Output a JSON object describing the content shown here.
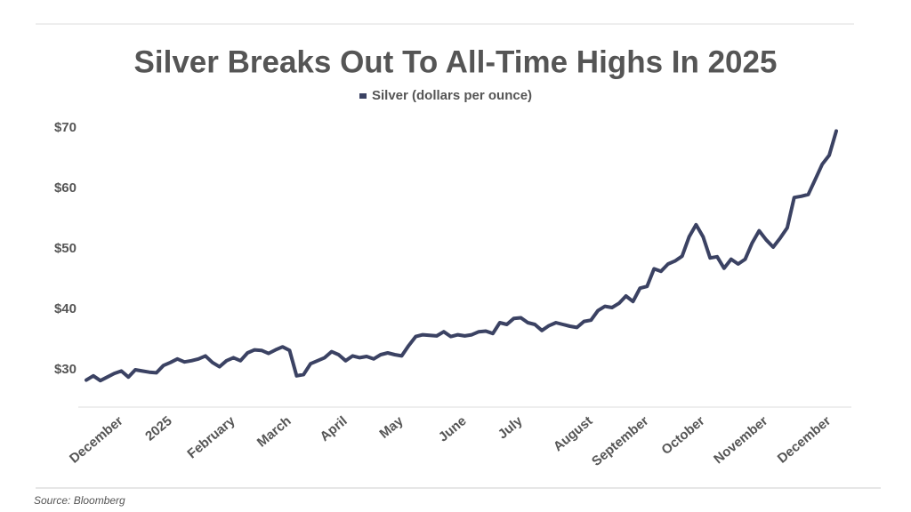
{
  "chart_data": {
    "type": "line",
    "title": "Silver Breaks Out To All-Time Highs In 2025",
    "source": "Source: Bloomberg",
    "categories": [
      null,
      null,
      null,
      null,
      null,
      "December",
      null,
      null,
      null,
      null,
      null,
      null,
      "2025",
      null,
      null,
      null,
      null,
      null,
      null,
      null,
      null,
      "February",
      null,
      null,
      null,
      null,
      null,
      null,
      null,
      "March",
      null,
      null,
      null,
      null,
      null,
      null,
      null,
      "April",
      null,
      null,
      null,
      null,
      null,
      null,
      null,
      "May",
      null,
      null,
      null,
      null,
      null,
      null,
      null,
      null,
      "June",
      null,
      null,
      null,
      null,
      null,
      null,
      null,
      "July",
      null,
      null,
      null,
      null,
      null,
      null,
      null,
      null,
      null,
      "August",
      null,
      null,
      null,
      null,
      null,
      null,
      null,
      "September",
      null,
      null,
      null,
      null,
      null,
      null,
      null,
      "October",
      null,
      null,
      null,
      null,
      null,
      null,
      null,
      null,
      "November",
      null,
      null,
      null,
      null,
      null,
      null,
      null,
      null,
      "December",
      null
    ],
    "series": [
      {
        "name": "Silver (dollars per ounce)",
        "color": "#3b4263",
        "values": [
          28.3,
          29.0,
          28.2,
          28.8,
          29.4,
          29.8,
          28.8,
          30.0,
          29.8,
          29.6,
          29.5,
          30.7,
          31.2,
          31.8,
          31.3,
          31.5,
          31.8,
          32.3,
          31.2,
          30.5,
          31.5,
          32.0,
          31.5,
          32.8,
          33.3,
          33.2,
          32.7,
          33.3,
          33.8,
          33.2,
          29.0,
          29.2,
          31.0,
          31.5,
          32.0,
          33.0,
          32.5,
          31.5,
          32.3,
          32.0,
          32.2,
          31.8,
          32.5,
          32.8,
          32.5,
          32.3,
          34.0,
          35.5,
          35.8,
          35.7,
          35.6,
          36.3,
          35.5,
          35.8,
          35.6,
          35.8,
          36.3,
          36.4,
          36.0,
          37.8,
          37.5,
          38.5,
          38.6,
          37.8,
          37.5,
          36.5,
          37.3,
          37.8,
          37.5,
          37.2,
          37.0,
          38.0,
          38.2,
          39.8,
          40.5,
          40.3,
          41.0,
          42.2,
          41.3,
          43.5,
          43.8,
          46.7,
          46.3,
          47.5,
          48.0,
          48.8,
          52.0,
          54.0,
          52.0,
          48.5,
          48.7,
          46.8,
          48.3,
          47.5,
          48.3,
          51.0,
          53.0,
          51.5,
          50.3,
          51.8,
          53.5,
          58.5,
          58.7,
          59.0,
          61.5,
          64.0,
          65.5,
          69.5
        ]
      }
    ],
    "ylim": [
      24,
      72
    ],
    "yticks": [
      {
        "value": 30,
        "label": "$30"
      },
      {
        "value": 40,
        "label": "$40"
      },
      {
        "value": 50,
        "label": "$50"
      },
      {
        "value": 60,
        "label": "$60"
      },
      {
        "value": 70,
        "label": "$70"
      }
    ],
    "grid": false
  }
}
